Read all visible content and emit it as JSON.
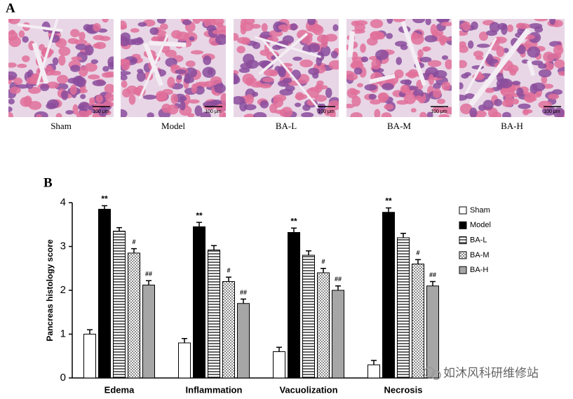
{
  "panel_a": {
    "label": "A",
    "images": [
      {
        "label": "Sham",
        "scale_bar": "100 μm"
      },
      {
        "label": "Model",
        "scale_bar": "100 μm"
      },
      {
        "label": "BA-L",
        "scale_bar": "100 μm"
      },
      {
        "label": "BA-M",
        "scale_bar": "100 μm"
      },
      {
        "label": "BA-H",
        "scale_bar": "100 μm"
      }
    ]
  },
  "panel_b_label": "B",
  "chart_data": {
    "type": "bar",
    "y_label": "Pancreas histology score",
    "categories": [
      "Edema",
      "Inflammation",
      "Vacuolization",
      "Necrosis"
    ],
    "ylim": [
      0,
      4
    ],
    "yticks": [
      0,
      1,
      2,
      3,
      4
    ],
    "series": [
      {
        "name": "Sham",
        "color": "#ffffff",
        "pattern": "none",
        "values": [
          1.0,
          0.8,
          0.6,
          0.3
        ],
        "errors": [
          0.1,
          0.1,
          0.1,
          0.1
        ]
      },
      {
        "name": "Model",
        "color": "#000000",
        "pattern": "none",
        "values": [
          3.85,
          3.45,
          3.32,
          3.78
        ],
        "errors": [
          0.08,
          0.1,
          0.1,
          0.1
        ],
        "annotations": [
          "**",
          "**",
          "**",
          "**"
        ]
      },
      {
        "name": "BA-L",
        "color": "#ffffff",
        "pattern": "hlines",
        "values": [
          3.35,
          2.92,
          2.8,
          3.2
        ],
        "errors": [
          0.08,
          0.1,
          0.1,
          0.1
        ]
      },
      {
        "name": "BA-M",
        "color": "#ffffff",
        "pattern": "dots",
        "values": [
          2.85,
          2.2,
          2.4,
          2.6
        ],
        "errors": [
          0.1,
          0.1,
          0.1,
          0.1
        ],
        "annotations": [
          "#",
          "#",
          "#",
          "#"
        ]
      },
      {
        "name": "BA-H",
        "color": "#a6a6a6",
        "pattern": "none",
        "values": [
          2.12,
          1.7,
          2.0,
          2.1
        ],
        "errors": [
          0.1,
          0.1,
          0.1,
          0.1
        ],
        "annotations": [
          "##",
          "##",
          "##",
          "##"
        ]
      }
    ]
  },
  "watermark": "如沐风科研维修站"
}
